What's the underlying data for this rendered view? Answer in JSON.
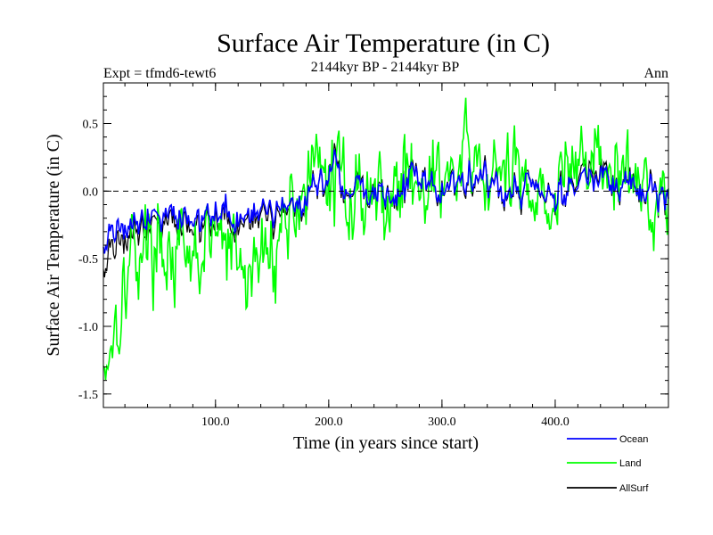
{
  "chart_data": {
    "type": "line",
    "title": "Surface Air Temperature (in C)",
    "subtitle": "2144kyr BP - 2144kyr BP",
    "left_label": "Expt = tfmd6-tewt6",
    "right_label": "Ann",
    "xlabel": "Time (in years since start)",
    "ylabel": "Surface Air Temperature (in C)",
    "xlim": [
      1,
      500
    ],
    "ylim": [
      -1.6,
      0.8
    ],
    "x_ticks": [
      {
        "value": 100,
        "label": "100.0"
      },
      {
        "value": 200,
        "label": "200.0"
      },
      {
        "value": 300,
        "label": "300.0"
      },
      {
        "value": 400,
        "label": "400.0"
      }
    ],
    "y_ticks": [
      {
        "value": 0.5,
        "label": "0.5"
      },
      {
        "value": 0.0,
        "label": "0.0"
      },
      {
        "value": -0.5,
        "label": "-0.5"
      },
      {
        "value": -1.0,
        "label": "-1.0"
      },
      {
        "value": -1.5,
        "label": "-1.5"
      }
    ],
    "reference_line": {
      "y": 0.0,
      "style": "dashed"
    },
    "legend_placement": "bottom-right",
    "series": [
      {
        "name": "Land",
        "color": "#00ff00",
        "x_step": 25,
        "x_start": 1,
        "values": [
          -1.3,
          -0.45,
          -0.35,
          -0.6,
          -0.3,
          -0.65,
          -0.4,
          0.05,
          0.1,
          0.0,
          -0.05,
          0.15,
          0.05,
          0.2,
          0.05,
          0.1,
          -0.05,
          0.3,
          0.1,
          0.05,
          -0.05
        ]
      },
      {
        "name": "Ocean",
        "color": "#0000ff",
        "x_step": 25,
        "x_start": 1,
        "values": [
          -0.35,
          -0.2,
          -0.15,
          -0.2,
          -0.15,
          -0.25,
          -0.15,
          -0.05,
          0.15,
          0.0,
          -0.05,
          0.1,
          0.0,
          0.15,
          0.0,
          0.05,
          -0.05,
          0.1,
          0.05,
          0.0,
          0.0
        ]
      },
      {
        "name": "AllSurf",
        "color": "#000000",
        "x_step": 25,
        "x_start": 1,
        "values": [
          -0.5,
          -0.25,
          -0.2,
          -0.25,
          -0.2,
          -0.3,
          -0.2,
          -0.05,
          0.15,
          0.0,
          -0.05,
          0.1,
          0.0,
          0.15,
          0.0,
          0.05,
          -0.05,
          0.15,
          0.05,
          0.0,
          0.0
        ]
      }
    ]
  }
}
